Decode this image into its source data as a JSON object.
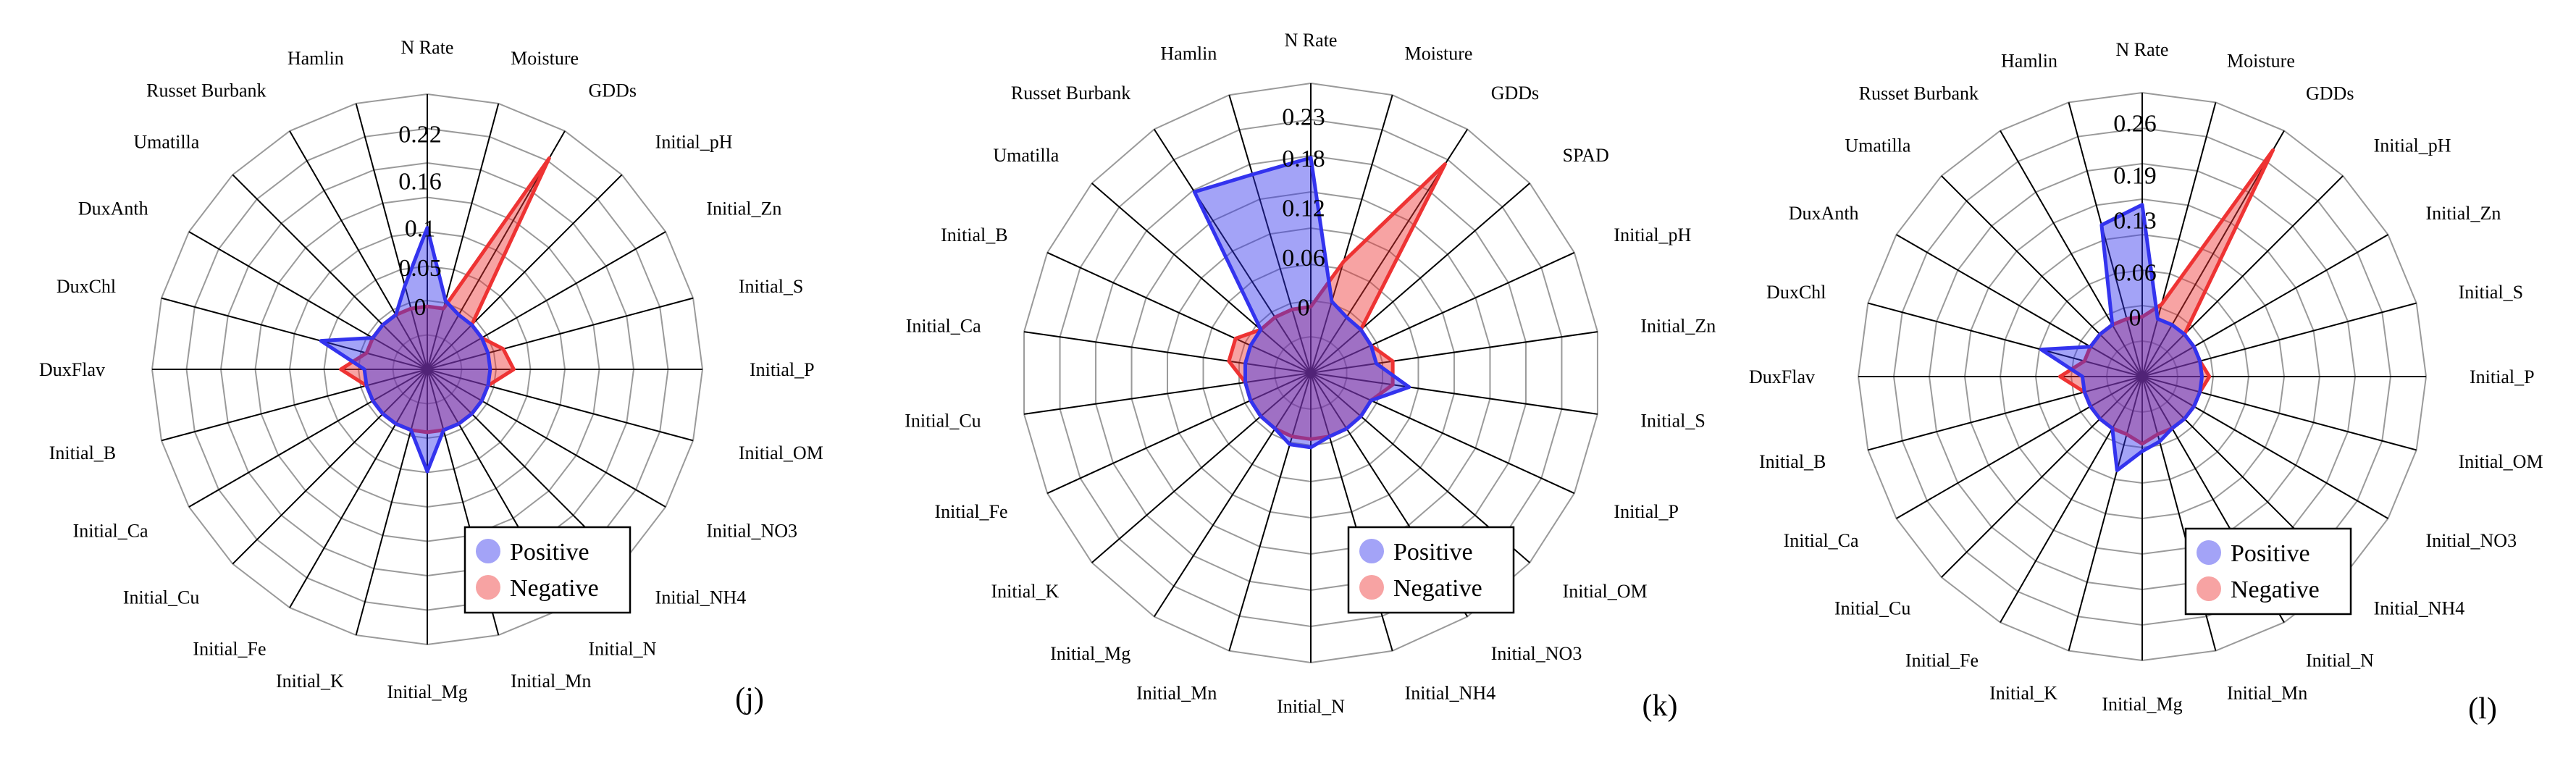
{
  "chart_data": [
    {
      "type": "radar",
      "panel_label": "(j)",
      "categories": [
        "N Rate",
        "Moisture",
        "GDDs",
        "Initial_pH",
        "Initial_Zn",
        "Initial_S",
        "Initial_P",
        "Initial_OM",
        "Initial_NO3",
        "Initial_NH4",
        "Initial_N",
        "Initial_Mn",
        "Initial_Mg",
        "Initial_K",
        "Initial_Fe",
        "Initial_Cu",
        "Initial_Ca",
        "Initial_B",
        "DuxFlav",
        "DuxChl",
        "DuxAnth",
        "Umatilla",
        "Russet Burbank",
        "Hamlin"
      ],
      "category_display": [
        "N Rate",
        "Moisture",
        "GDDs",
        "Initial_pH",
        "Initial_Zn",
        "Initial_S",
        "Initial_P",
        "Initial_OM",
        "Initial_NO3",
        "Initial_NH4",
        "Initial_N",
        "Initial_Mn",
        "Initial_Mg",
        "Initial_K",
        "Initial_Fe",
        "Initial_Cu",
        "Initial_Ca",
        "Initial_B",
        "DuxFlav",
        "DuxChl",
        "DuxAnth",
        "Umatilla",
        "Russet Burbank",
        "Hamlin"
      ],
      "ticks": [
        0,
        0.05,
        0.1,
        0.16,
        0.22
      ],
      "tick_labels": [
        "0",
        "0.05",
        "0.1",
        "0.16",
        "0.22"
      ],
      "rmin": -0.08,
      "rmax": 0.27,
      "series": [
        {
          "name": "Positive",
          "color": "#3333ee",
          "values": [
            0.1,
            0.01,
            0.0,
            0.0,
            0.0,
            0.0,
            0.0,
            0.0,
            0.0,
            0.0,
            0.0,
            0.0,
            0.05,
            0.0,
            0.0,
            0.0,
            0.0,
            0.0,
            0.0,
            0.06,
            0.0,
            0.0,
            0.0,
            0.03
          ]
        },
        {
          "name": "Negative",
          "color": "#ee3333",
          "values": [
            0.0,
            0.0,
            0.23,
            0.0,
            0.0,
            0.02,
            0.03,
            0.0,
            0.0,
            0.0,
            0.0,
            0.0,
            0.0,
            0.0,
            0.0,
            0.0,
            0.0,
            0.0,
            0.03,
            0.0,
            0.0,
            0.0,
            0.0,
            0.0
          ]
        }
      ],
      "legend": [
        "Positive",
        "Negative"
      ]
    },
    {
      "type": "radar",
      "panel_label": "(k)",
      "categories": [
        "N Rate",
        "Moisture",
        "GDDs",
        "SPAD",
        "Initial_pH",
        "Initial_Zn",
        "Initial_S",
        "Initial_P",
        "Initial_OM",
        "Initial_NO3",
        "Initial_NH4",
        "Initial_N",
        "Initial_Mn",
        "Initial_Mg",
        "Initial_K",
        "Initial_Fe",
        "Initial_Cu",
        "Initial_Ca",
        "Initial_B",
        "Umatilla",
        "Russet Burbank",
        "Hamlin"
      ],
      "category_display": [
        "N Rate",
        "Moisture",
        "GDDs",
        "SPAD",
        "Initial_pH",
        "Initial_Zn",
        "Initial_S",
        "Initial_P",
        "Initial_OM",
        "Initial_NO3",
        "Initial_NH4",
        "Initial_N",
        "Initial_Mn",
        "Initial_Mg",
        "Initial_K",
        "Initial_Fe",
        "Initial_Cu",
        "Initial_Ca",
        "Initial_B",
        "Umatilla",
        "Russet Burbank",
        "Hamlin"
      ],
      "ticks": [
        0,
        0.06,
        0.12,
        0.18,
        0.23
      ],
      "tick_labels": [
        "0",
        "0.06",
        "0.12",
        "0.18",
        "0.23"
      ],
      "rmin": -0.08,
      "rmax": 0.27,
      "series": [
        {
          "name": "Positive",
          "color": "#3333ee",
          "values": [
            0.18,
            0.01,
            0.0,
            0.0,
            0.0,
            0.0,
            0.04,
            0.0,
            0.0,
            0.0,
            0.0,
            0.01,
            0.01,
            0.0,
            0.0,
            0.0,
            0.0,
            0.0,
            0.0,
            0.0,
            0.18,
            0.17
          ]
        },
        {
          "name": "Negative",
          "color": "#ee3333",
          "values": [
            0.0,
            0.06,
            0.22,
            0.0,
            0.0,
            0.02,
            0.02,
            0.0,
            0.0,
            0.0,
            0.0,
            0.0,
            0.0,
            0.0,
            0.0,
            0.0,
            0.0,
            0.02,
            0.02,
            0.0,
            0.0,
            0.0
          ]
        }
      ],
      "legend": [
        "Positive",
        "Negative"
      ]
    },
    {
      "type": "radar",
      "panel_label": "(l)",
      "categories": [
        "N Rate",
        "Moisture",
        "GDDs",
        "Initial_pH",
        "Initial_Zn",
        "Initial_S",
        "Initial_P",
        "Initial_OM",
        "Initial_NO3",
        "Initial_NH4",
        "Initial_N",
        "Initial_Mn",
        "Initial_Mg",
        "Initial_K",
        "Initial_Fe",
        "Initial_Cu",
        "Initial_Ca",
        "Initial_B",
        "DuxFlav",
        "DuxChl",
        "DuxAnth",
        "Umatilla",
        "Russet Burbank",
        "Hamlin"
      ],
      "category_display": [
        "N Rate",
        "Moisture",
        "GDDs",
        "Initial_pH",
        "Initial_Zn",
        "Initial_S",
        "Initial_P",
        "Initial_OM",
        "Initial_NO3",
        "Initial_NH4",
        "Initial_N",
        "Initial_Mn",
        "Initial_Mg",
        "Initial_K",
        "Initial_Fe",
        "Initial_Cu",
        "Initial_Ca",
        "Initial_B",
        "DuxFlav",
        "DuxChl",
        "DuxAnth",
        "Umatilla",
        "Russet Burbank",
        "Hamlin"
      ],
      "ticks": [
        0,
        0.06,
        0.13,
        0.19,
        0.26
      ],
      "tick_labels": [
        "0",
        "0.06",
        "0.13",
        "0.19",
        "0.26"
      ],
      "rmin": -0.08,
      "rmax": 0.3,
      "series": [
        {
          "name": "Positive",
          "color": "#3333ee",
          "values": [
            0.15,
            0.0,
            0.0,
            0.0,
            0.0,
            0.0,
            0.0,
            0.0,
            0.0,
            0.0,
            0.0,
            0.01,
            0.02,
            0.05,
            0.0,
            0.0,
            0.0,
            0.0,
            0.0,
            0.06,
            0.0,
            0.0,
            0.0,
            0.13
          ]
        },
        {
          "name": "Negative",
          "color": "#ee3333",
          "values": [
            0.0,
            0.02,
            0.27,
            0.0,
            0.0,
            0.0,
            0.01,
            0.0,
            0.0,
            0.0,
            0.0,
            0.0,
            0.01,
            0.0,
            0.0,
            0.0,
            0.0,
            0.0,
            0.03,
            0.0,
            0.0,
            0.0,
            0.0,
            0.0
          ]
        }
      ],
      "legend": [
        "Positive",
        "Negative"
      ]
    }
  ]
}
